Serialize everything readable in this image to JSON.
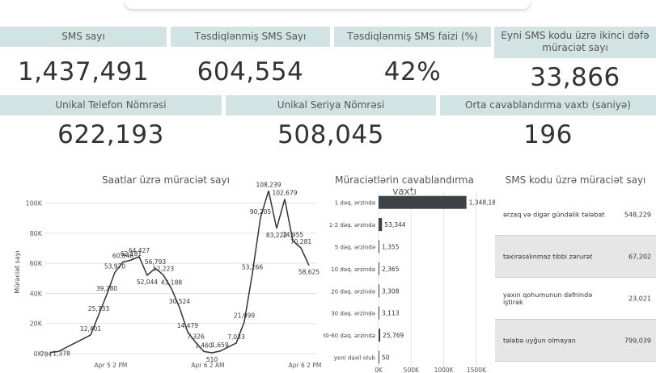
{
  "kpis": [
    {
      "label": "SMS sayı",
      "value": "1,437,491"
    },
    {
      "label": "Təsdiqlənmiş SMS Sayı",
      "value": "604,554"
    },
    {
      "label": "Təsdiqlənmiş SMS faizi (%)",
      "value": "42%"
    },
    {
      "label": "Eyni SMS kodu üzrə ikinci dəfə müraciət sayı",
      "value": "33,866"
    },
    {
      "label": "Unikal Telefon Nömrəsi",
      "value": "622,193"
    },
    {
      "label": "Unikal Seriya Nömrəsi",
      "value": "508,045"
    },
    {
      "label": "Orta cavablandırma vaxtı (saniyə)",
      "value": "196"
    }
  ],
  "chart_data": [
    {
      "type": "line",
      "title": "Saatlar üzrə müraciət sayı",
      "ylabel": "Müraciət sayı",
      "ylim": [
        0,
        110000
      ],
      "yticks": [
        "0K",
        "20K",
        "40K",
        "60K",
        "80K",
        "100K"
      ],
      "ytick_values": [
        0,
        20000,
        40000,
        60000,
        80000,
        100000
      ],
      "xticks": [
        "Apr 5 2 PM",
        "Apr 6 2 AM",
        "Apr 6 2 PM"
      ],
      "xtick_index": [
        7.5,
        19.5,
        31.5
      ],
      "values": [
        784,
        1378,
        12401,
        25733,
        39280,
        53970,
        60846,
        62181,
        64427,
        52044,
        56793,
        52223,
        43188,
        30524,
        14479,
        7326,
        1460,
        510,
        1659,
        7033,
        21099,
        53266,
        90205,
        108239,
        83222,
        102679,
        74955,
        70281,
        58625
      ],
      "labels": [
        "784",
        "1,378",
        "12,401",
        "25,733",
        "39,280",
        "53,970",
        "60,846",
        "62,181",
        "64,427",
        "52,044",
        "56,793",
        "52,223",
        "43,188",
        "30,524",
        "14,479",
        "7,326",
        "1,460",
        "510",
        "1,659",
        "7,033",
        "21,099",
        "53,266",
        "90,205",
        "108,239",
        "83,222",
        "102,679",
        "74,955",
        "70,281",
        "58,625"
      ],
      "x_index": [
        0,
        1,
        5,
        6,
        7,
        8,
        9,
        10,
        11,
        12,
        13,
        14,
        15,
        16,
        17,
        18,
        19,
        20,
        21,
        23,
        24,
        25,
        26,
        27,
        28,
        29,
        30,
        31,
        32
      ]
    },
    {
      "type": "bar",
      "orientation": "horizontal",
      "title": "Müraciətlərin cavablandırma vaxtı",
      "categories": [
        "1 dəq. ərzində",
        "1-2 dəq. ərzində",
        "5 dəq. ərzində",
        "10 dəq. ərzində",
        "20 dəq. ərzində",
        "30 dəq. ərzində",
        "30-60 dəq. ərzində",
        "yeni daxil olub"
      ],
      "values": [
        1348187,
        53344,
        1355,
        2365,
        3308,
        3113,
        25769,
        50
      ],
      "labels": [
        "1,348,187",
        "53,344",
        "1,355",
        "2,365",
        "3,308",
        "3,113",
        "25,769",
        "50"
      ],
      "xlim": [
        0,
        1700000
      ],
      "xticks": [
        "0K",
        "500K",
        "1000K",
        "1500K"
      ],
      "xtick_values": [
        0,
        500000,
        1000000,
        1500000
      ]
    },
    {
      "type": "table",
      "title": "SMS kodu üzrə müraciət sayı",
      "rows": [
        {
          "label": "ərzaq və digər gündəlik tələbat",
          "value": "548,229"
        },
        {
          "label": "təxirəsalınmaz tibbi zərurət",
          "value": "67,202"
        },
        {
          "label": "yaxın qohumunun dəfnində iştirak",
          "value": "23,021"
        },
        {
          "label": "tələbə uyğun olmayan",
          "value": "799,039"
        }
      ]
    }
  ],
  "colors": {
    "header_bg": "#d2e3e3",
    "line": "#333333",
    "bar": "#3d4249"
  }
}
